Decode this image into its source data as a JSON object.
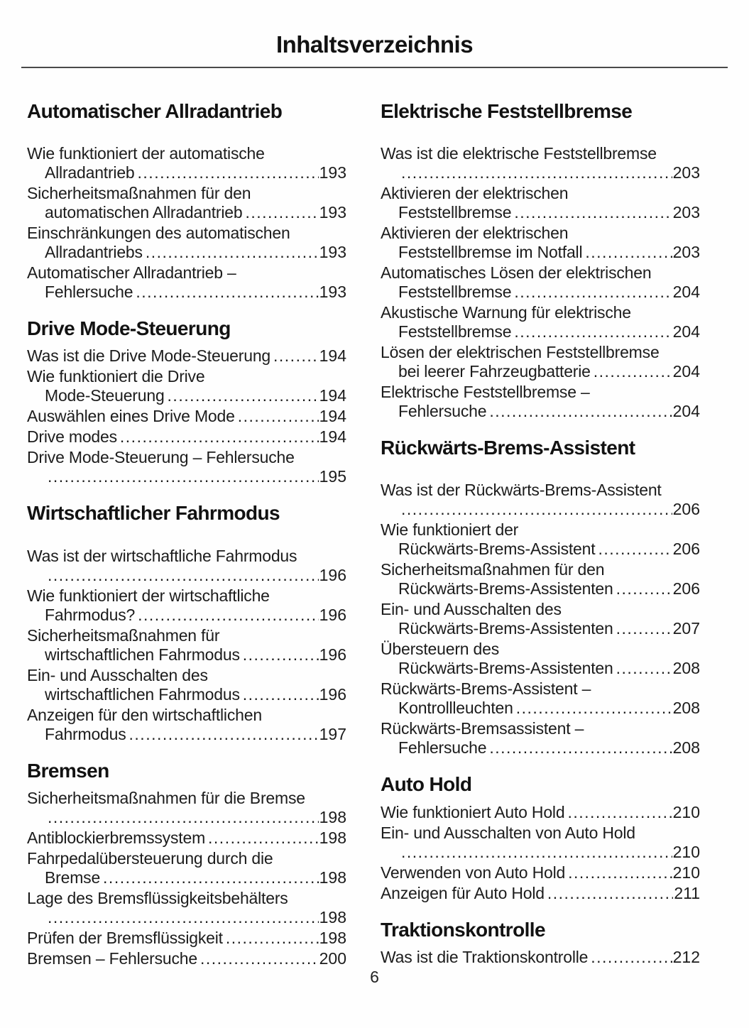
{
  "page": {
    "title": "Inhaltsverzeichnis",
    "footer_page_number": "6",
    "text_color": "#1c1c1c",
    "heading_color": "#121212",
    "divider_color": "#4a4a4a",
    "background": "#fefefe"
  },
  "columns": [
    {
      "sections": [
        {
          "heading": "Automatischer Allradantrieb",
          "extra_space_below_heading": true,
          "entries": [
            {
              "lines": [
                "Wie funktioniert der automatische",
                "Allradantrieb"
              ],
              "page": "193"
            },
            {
              "lines": [
                "Sicherheitsmaßnahmen für den",
                "automatischen Allradantrieb"
              ],
              "page": "193"
            },
            {
              "lines": [
                "Einschränkungen des automatischen",
                "Allradantriebs"
              ],
              "page": "193"
            },
            {
              "lines": [
                "Automatischer Allradantrieb –",
                "Fehlersuche"
              ],
              "page": "193"
            }
          ]
        },
        {
          "heading": "Drive Mode-Steuerung",
          "extra_space_below_heading": false,
          "entries": [
            {
              "lines": [
                "Was ist die Drive Mode-Steuerung"
              ],
              "page": "194"
            },
            {
              "lines": [
                "Wie funktioniert die Drive",
                "Mode-Steuerung"
              ],
              "page": "194"
            },
            {
              "lines": [
                "Auswählen eines Drive Mode"
              ],
              "page": "194"
            },
            {
              "lines": [
                "Drive modes"
              ],
              "page": "194"
            },
            {
              "lines": [
                "Drive Mode-Steuerung – Fehlersuche",
                ""
              ],
              "page": "195"
            }
          ]
        },
        {
          "heading": "Wirtschaftlicher Fahrmodus",
          "extra_space_below_heading": true,
          "entries": [
            {
              "lines": [
                "Was ist der wirtschaftliche Fahrmodus",
                ""
              ],
              "page": "196"
            },
            {
              "lines": [
                "Wie funktioniert der wirtschaftliche",
                "Fahrmodus?"
              ],
              "page": "196"
            },
            {
              "lines": [
                "Sicherheitsmaßnahmen für",
                "wirtschaftlichen Fahrmodus"
              ],
              "page": "196"
            },
            {
              "lines": [
                "Ein- und Ausschalten des",
                "wirtschaftlichen Fahrmodus"
              ],
              "page": "196"
            },
            {
              "lines": [
                "Anzeigen für den wirtschaftlichen",
                "Fahrmodus"
              ],
              "page": "197"
            }
          ]
        },
        {
          "heading": "Bremsen",
          "extra_space_below_heading": false,
          "entries": [
            {
              "lines": [
                "Sicherheitsmaßnahmen für die Bremse",
                ""
              ],
              "page": "198"
            },
            {
              "lines": [
                "Antiblockierbremssystem"
              ],
              "page": "198"
            },
            {
              "lines": [
                "Fahrpedalübersteuerung durch die",
                "Bremse"
              ],
              "page": "198"
            },
            {
              "lines": [
                "Lage des Bremsflüssigkeitsbehälters",
                ""
              ],
              "page": "198"
            },
            {
              "lines": [
                "Prüfen der Bremsflüssigkeit"
              ],
              "page": "198"
            },
            {
              "lines": [
                "Bremsen – Fehlersuche"
              ],
              "page": "200"
            }
          ]
        }
      ]
    },
    {
      "sections": [
        {
          "heading": "Elektrische Feststellbremse",
          "extra_space_below_heading": true,
          "entries": [
            {
              "lines": [
                "Was ist die elektrische Feststellbremse",
                ""
              ],
              "page": "203"
            },
            {
              "lines": [
                "Aktivieren der elektrischen",
                "Feststellbremse"
              ],
              "page": "203"
            },
            {
              "lines": [
                "Aktivieren der elektrischen",
                "Feststellbremse im Notfall"
              ],
              "page": "203"
            },
            {
              "lines": [
                "Automatisches Lösen der elektrischen",
                "Feststellbremse"
              ],
              "page": "204"
            },
            {
              "lines": [
                "Akustische Warnung für elektrische",
                "Feststellbremse"
              ],
              "page": "204"
            },
            {
              "lines": [
                "Lösen der elektrischen Feststellbremse",
                "bei leerer Fahrzeugbatterie"
              ],
              "page": "204"
            },
            {
              "lines": [
                "Elektrische Feststellbremse –",
                "Fehlersuche"
              ],
              "page": "204"
            }
          ]
        },
        {
          "heading": "Rückwärts-Brems-Assistent",
          "extra_space_below_heading": true,
          "entries": [
            {
              "lines": [
                "Was ist der Rückwärts-Brems-Assistent",
                ""
              ],
              "page": "206"
            },
            {
              "lines": [
                "Wie funktioniert der",
                "Rückwärts-Brems-Assistent"
              ],
              "page": "206"
            },
            {
              "lines": [
                "Sicherheitsmaßnahmen für den",
                "Rückwärts-Brems-Assistenten"
              ],
              "page": "206"
            },
            {
              "lines": [
                "Ein- und Ausschalten des",
                "Rückwärts-Brems-Assistenten"
              ],
              "page": "207"
            },
            {
              "lines": [
                "Übersteuern des",
                "Rückwärts-Brems-Assistenten"
              ],
              "page": "208"
            },
            {
              "lines": [
                "Rückwärts-Brems-Assistent –",
                "Kontrollleuchten"
              ],
              "page": "208"
            },
            {
              "lines": [
                "Rückwärts-Bremsassistent –",
                "Fehlersuche"
              ],
              "page": "208"
            }
          ]
        },
        {
          "heading": "Auto Hold",
          "extra_space_below_heading": false,
          "entries": [
            {
              "lines": [
                "Wie funktioniert Auto Hold"
              ],
              "page": "210"
            },
            {
              "lines": [
                "Ein- und Ausschalten von Auto Hold",
                ""
              ],
              "page": "210"
            },
            {
              "lines": [
                "Verwenden von Auto Hold"
              ],
              "page": "210"
            },
            {
              "lines": [
                "Anzeigen für Auto Hold"
              ],
              "page": "211"
            }
          ]
        },
        {
          "heading": "Traktionskontrolle",
          "extra_space_below_heading": false,
          "entries": [
            {
              "lines": [
                "Was ist die Traktionskontrolle"
              ],
              "page": "212"
            }
          ]
        }
      ]
    }
  ]
}
